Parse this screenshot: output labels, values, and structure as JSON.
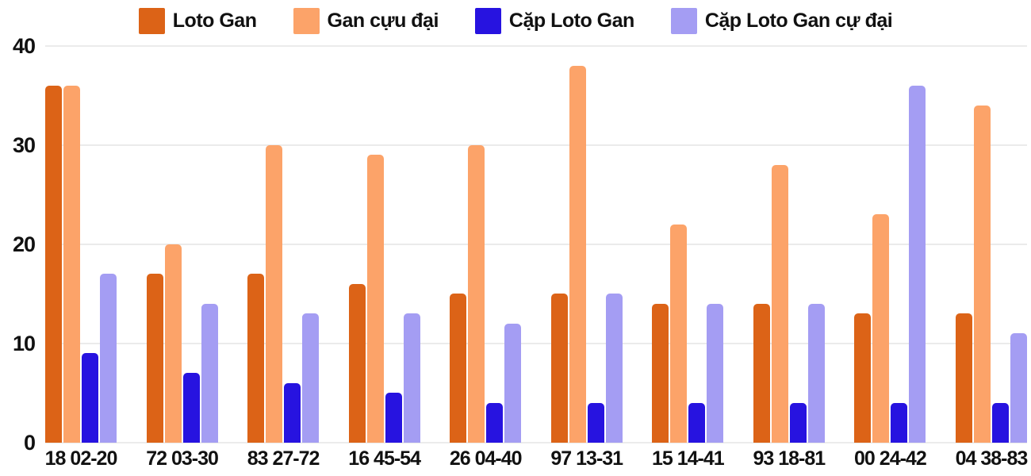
{
  "chart_data": {
    "type": "bar",
    "title": "",
    "xlabel": "",
    "ylabel": "",
    "categories": [
      "18 02-20",
      "72 03-30",
      "83 27-72",
      "16 45-54",
      "26 04-40",
      "97 13-31",
      "15 14-41",
      "93 18-81",
      "00 24-42",
      "04 38-83"
    ],
    "series": [
      {
        "name": "Loto Gan",
        "color": "#dc6317",
        "values": [
          36,
          17,
          17,
          16,
          15,
          15,
          14,
          14,
          13,
          13
        ]
      },
      {
        "name": "Gan cựu đại",
        "color": "#fca369",
        "values": [
          36,
          20,
          30,
          29,
          30,
          38,
          22,
          28,
          23,
          34
        ]
      },
      {
        "name": "Cặp Loto Gan",
        "color": "#2713e0",
        "values": [
          9,
          7,
          6,
          5,
          4,
          4,
          4,
          4,
          4,
          4
        ]
      },
      {
        "name": "Cặp Loto Gan cự đại",
        "color": "#a49df3",
        "values": [
          17,
          14,
          13,
          13,
          12,
          15,
          14,
          14,
          36,
          11
        ]
      }
    ],
    "ylim": [
      0,
      40
    ],
    "yticks": [
      0,
      10,
      20,
      30,
      40
    ],
    "grid": true,
    "legend_position": "top"
  },
  "colors": {
    "background": "#ffffff",
    "gridline": "#ebebeb",
    "axis_text": "#111111"
  }
}
